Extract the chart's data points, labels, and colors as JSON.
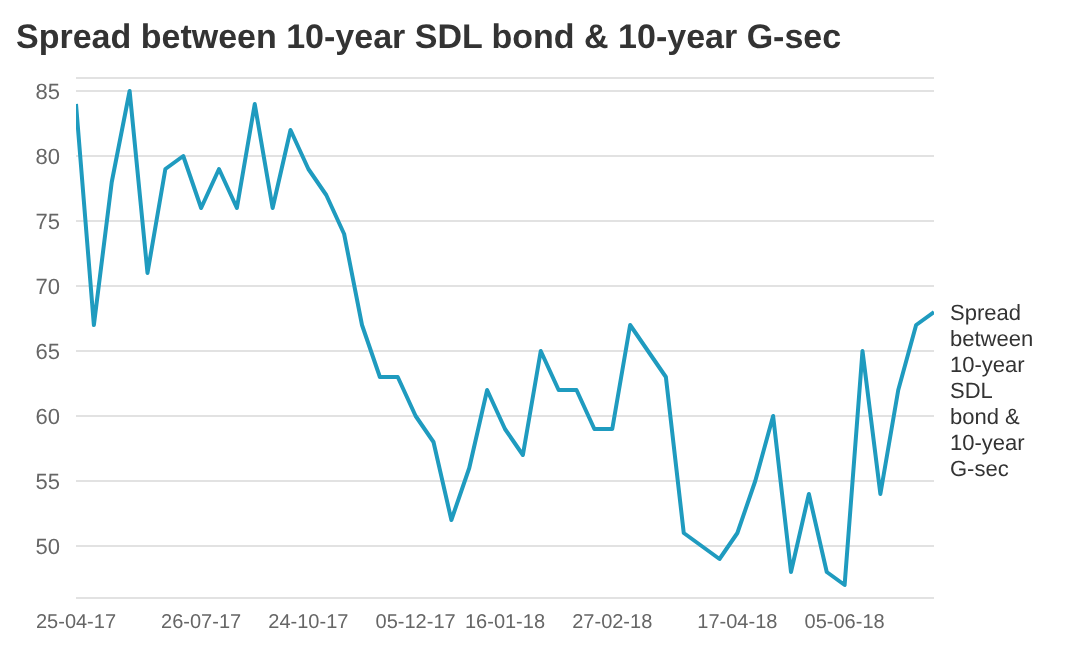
{
  "chart_data": {
    "type": "line",
    "title": "Spread between 10-year SDL bond & 10-year G-sec",
    "categories": [
      "25-04-17",
      null,
      null,
      null,
      null,
      null,
      null,
      "26-07-17",
      null,
      null,
      null,
      null,
      null,
      "24-10-17",
      null,
      null,
      null,
      null,
      null,
      "05-12-17",
      null,
      null,
      null,
      null,
      "16-01-18",
      null,
      null,
      null,
      null,
      null,
      "27-02-18",
      null,
      null,
      null,
      null,
      null,
      null,
      "17-04-18",
      null,
      null,
      null,
      null,
      null,
      "05-06-18",
      null,
      null,
      null,
      null,
      null
    ],
    "series": [
      {
        "name": "Spread between 10-year SDL bond & 10-year G-sec",
        "color": "#1f9bbf",
        "values": [
          84,
          67,
          78,
          85,
          71,
          79,
          80,
          76,
          79,
          76,
          84,
          76,
          82,
          79,
          77,
          74,
          67,
          63,
          63,
          60,
          58,
          52,
          56,
          62,
          59,
          57,
          65,
          62,
          62,
          59,
          59,
          67,
          65,
          63,
          51,
          50,
          49,
          51,
          55,
          60,
          48,
          54,
          48,
          47,
          65,
          54,
          62,
          67,
          68
        ]
      }
    ],
    "ylim": [
      46,
      86
    ],
    "yticks": [
      50,
      55,
      60,
      65,
      70,
      75,
      80,
      85
    ],
    "grid": "y",
    "marker": "none",
    "line_style": "solid"
  }
}
